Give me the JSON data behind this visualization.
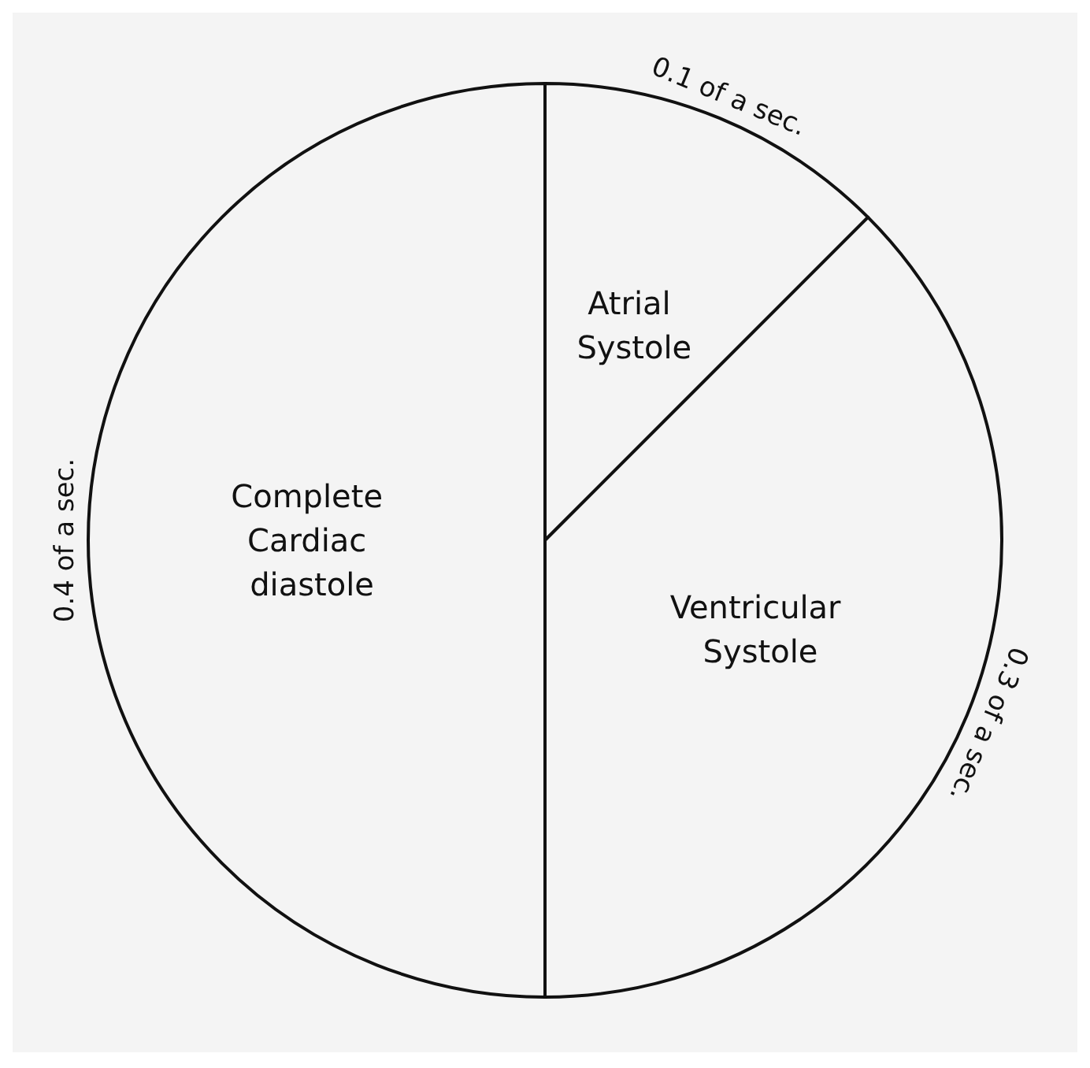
{
  "chart_data": {
    "type": "pie",
    "categories": [
      "Atrial Systole",
      "Ventricular Systole",
      "Complete Cardiac diastole"
    ],
    "values": [
      0.1,
      0.3,
      0.4
    ],
    "value_labels": [
      "0.1 of a sec.",
      "0.3 of a sec.",
      "0.4 of a sec."
    ],
    "colors": [
      "#f4f4f4",
      "#f4f4f4",
      "#f4f4f4"
    ]
  }
}
